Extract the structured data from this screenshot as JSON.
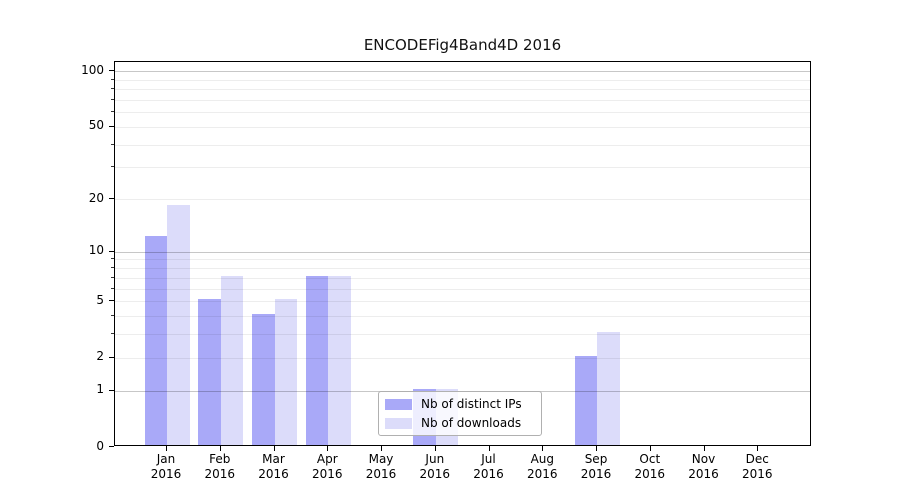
{
  "chart_data": {
    "type": "bar",
    "title": "ENCODEFig4Band4D 2016",
    "categories": [
      "Jan",
      "Feb",
      "Mar",
      "Apr",
      "May",
      "Jun",
      "Jul",
      "Aug",
      "Sep",
      "Oct",
      "Nov",
      "Dec"
    ],
    "category_sublabel": "2016",
    "series": [
      {
        "name": "Nb of distinct IPs",
        "color": "#a9a9f8",
        "values": [
          12,
          5,
          4,
          7,
          0,
          1,
          0,
          0,
          2,
          0,
          0,
          0
        ]
      },
      {
        "name": "Nb of downloads",
        "color": "#dcdcfa",
        "values": [
          18,
          7,
          5,
          7,
          0,
          1,
          0,
          0,
          3,
          0,
          0,
          0
        ]
      }
    ],
    "y_axis": {
      "scale": "log1p",
      "tick_labels": [
        "100",
        "50",
        "20",
        "10",
        "5",
        "2",
        "1",
        "0"
      ],
      "tick_values": [
        100,
        50,
        20,
        10,
        5,
        2,
        1,
        0
      ],
      "minor_tick_values": [
        90,
        80,
        70,
        60,
        40,
        30,
        9,
        8,
        7,
        6,
        4,
        3
      ],
      "major_grid_values": [
        100,
        10,
        1
      ],
      "ylim": [
        0,
        112
      ]
    },
    "x_axis": {
      "sublabel_all": "2016"
    },
    "legend": {
      "position": "lower-center",
      "frame": true
    },
    "grid": true,
    "colors": {
      "major_grid": "rgba(0,0,0,0.22)",
      "minor_grid": "rgba(0,0,0,0.07)"
    }
  }
}
